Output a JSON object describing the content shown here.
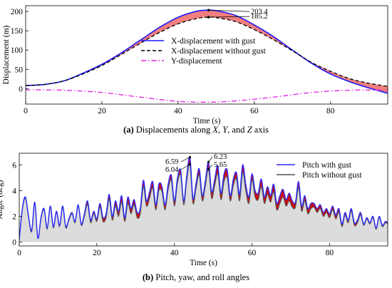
{
  "chart_data": [
    {
      "type": "line",
      "panel_label": "(a)",
      "caption_parts": [
        "Displacements along ",
        "X",
        ", ",
        "Y",
        ", and ",
        "Z",
        " axis"
      ],
      "xlabel": "Time (s)",
      "ylabel": "Displacement (m)",
      "xlim": [
        0,
        95
      ],
      "ylim": [
        -40,
        215
      ],
      "xticks": [
        0,
        20,
        40,
        60,
        80
      ],
      "yticks": [
        0,
        50,
        100,
        150,
        200
      ],
      "legend_position": "center-right",
      "grid": false,
      "series": [
        {
          "name": "X-displacement with gust",
          "color": "#1a1aff",
          "style": "solid",
          "x": [
            0,
            5,
            10,
            15,
            20,
            25,
            30,
            35,
            40,
            45,
            48,
            50,
            55,
            60,
            65,
            70,
            75,
            80,
            85,
            90,
            95
          ],
          "y": [
            8,
            11,
            20,
            40,
            63,
            92,
            125,
            158,
            185,
            201,
            203.4,
            202,
            190,
            165,
            135,
            100,
            66,
            38,
            18,
            2,
            -12
          ]
        },
        {
          "name": "X-displacement without gust",
          "color": "#000000",
          "style": "dashed",
          "x": [
            0,
            5,
            10,
            15,
            20,
            25,
            30,
            35,
            40,
            45,
            48,
            50,
            55,
            60,
            65,
            70,
            75,
            80,
            85,
            90,
            95
          ],
          "y": [
            8,
            11,
            20,
            38,
            60,
            88,
            117,
            145,
            168,
            182,
            185.2,
            184,
            174,
            153,
            127,
            98,
            68,
            45,
            26,
            14,
            6
          ]
        },
        {
          "name": "Y-displacement",
          "color": "#e020e0",
          "style": "dashdot",
          "x": [
            0,
            10,
            20,
            30,
            40,
            48,
            55,
            65,
            75,
            85,
            95
          ],
          "y": [
            -3,
            -4,
            -10,
            -22,
            -33,
            -35,
            -32,
            -22,
            -10,
            -4,
            -4
          ]
        }
      ],
      "annotations": [
        "203.4",
        "185.2"
      ]
    },
    {
      "type": "line",
      "panel_label": "(b)",
      "caption_parts": [
        "Pitch, yaw, and roll angles"
      ],
      "xlabel": "Time (s)",
      "ylabel": "Angle (deg)",
      "xlim": [
        0,
        95
      ],
      "ylim": [
        -0.3,
        6.9
      ],
      "xticks": [
        0,
        20,
        40,
        60,
        80
      ],
      "yticks": [
        0,
        2,
        4,
        6
      ],
      "legend_position": "top-right",
      "grid": false,
      "series": [
        {
          "name": "Pitch with gust",
          "color": "#2a2aff",
          "style": "solid",
          "x": [
            0,
            0.8,
            1.6,
            2.4,
            3.2,
            4.0,
            4.8,
            5.6,
            6.4,
            7.2,
            8.0,
            8.8,
            9.6,
            10.4,
            11.2,
            12.0,
            12.8,
            13.6,
            14.4,
            15.2,
            16.0,
            16.8,
            17.6,
            18.4,
            19.2,
            20.0,
            20.8,
            21.6,
            22.4,
            23.2,
            24.0,
            24.8,
            25.6,
            26.4,
            27.2,
            28.0,
            28.8,
            29.6,
            30.4,
            31.2,
            32.0,
            32.8,
            33.6,
            34.4,
            35.2,
            36.0,
            36.8,
            37.6,
            38.4,
            39.2,
            40.0,
            40.8,
            41.6,
            42.4,
            43.2,
            44.0,
            44.8,
            45.6,
            46.4,
            47.2,
            48.0,
            48.8,
            49.6,
            50.4,
            51.2,
            52.0,
            52.8,
            53.6,
            54.4,
            55.2,
            56.0,
            56.8,
            57.6,
            58.4,
            59.2,
            60.0,
            60.8,
            61.6,
            62.4,
            63.2,
            64.0,
            64.8,
            65.6,
            66.4,
            67.2,
            68.0,
            68.8,
            69.6,
            70.4,
            71.2,
            72.0,
            72.8,
            73.6,
            74.4,
            75.2,
            76.0,
            76.8,
            77.6,
            78.4,
            79.2,
            80.0,
            80.8,
            81.6,
            82.4,
            83.2,
            84.0,
            84.8,
            85.6,
            86.4,
            87.2,
            88.0,
            88.8,
            89.6,
            90.4,
            91.2,
            92.0,
            92.8,
            93.6,
            94.4,
            95.0
          ],
          "y": [
            0.2,
            2.6,
            3.5,
            2.0,
            0.9,
            3.1,
            0.3,
            1.9,
            2.6,
            1.1,
            2.8,
            1.2,
            2.4,
            1.3,
            2.8,
            1.2,
            1.8,
            2.3,
            1.6,
            2.9,
            1.4,
            2.2,
            3.2,
            1.7,
            2.4,
            1.8,
            3.0,
            1.9,
            2.2,
            3.7,
            2.0,
            3.2,
            2.4,
            3.6,
            1.9,
            3.5,
            2.6,
            3.3,
            2.3,
            2.6,
            4.8,
            3.2,
            3.9,
            4.7,
            2.9,
            4.5,
            4.3,
            2.9,
            4.5,
            5.2,
            3.2,
            5.0,
            5.6,
            3.2,
            5.2,
            6.59,
            3.4,
            4.6,
            5.7,
            3.6,
            4.8,
            6.23,
            3.9,
            4.9,
            5.9,
            3.8,
            5.3,
            5.6,
            3.6,
            4.9,
            5.4,
            3.7,
            6.0,
            4.5,
            3.5,
            5.3,
            4.0,
            3.8,
            4.9,
            3.5,
            4.3,
            3.6,
            4.5,
            3.0,
            3.6,
            4.1,
            3.3,
            3.8,
            3.2,
            3.1,
            4.7,
            2.8,
            3.6,
            2.6,
            3.0,
            3.0,
            2.6,
            2.9,
            2.3,
            2.6,
            2.2,
            2.8,
            2.1,
            2.6,
            1.4,
            2.3,
            1.7,
            2.6,
            1.5,
            1.7,
            2.3,
            1.4,
            1.9,
            1.5,
            2.0,
            1.1,
            2.0,
            1.3,
            1.6,
            1.5
          ],
          "fill": "#dcdcdc"
        },
        {
          "name": "Pitch without gust",
          "color": "#555555",
          "style": "solid",
          "x": [
            0,
            0.8,
            1.6,
            2.4,
            3.2,
            4.0,
            4.8,
            5.6,
            6.4,
            7.2,
            8.0,
            8.8,
            9.6,
            10.4,
            11.2,
            12.0,
            12.8,
            13.6,
            14.4,
            15.2,
            16.0,
            16.8,
            17.6,
            18.4,
            19.2,
            20.0,
            20.8,
            21.6,
            22.4,
            23.2,
            24.0,
            24.8,
            25.6,
            26.4,
            27.2,
            28.0,
            28.8,
            29.6,
            30.4,
            31.2,
            32.0,
            32.8,
            33.6,
            34.4,
            35.2,
            36.0,
            36.8,
            37.6,
            38.4,
            39.2,
            40.0,
            40.8,
            41.6,
            42.4,
            43.2,
            44.0,
            44.8,
            45.6,
            46.4,
            47.2,
            48.0,
            48.8,
            49.6,
            50.4,
            51.2,
            52.0,
            52.8,
            53.6,
            54.4,
            55.2,
            56.0,
            56.8,
            57.6,
            58.4,
            59.2,
            60.0,
            60.8,
            61.6,
            62.4,
            63.2,
            64.0,
            64.8,
            65.6,
            66.4,
            67.2,
            68.0,
            68.8,
            69.6,
            70.4,
            71.2,
            72.0,
            72.8,
            73.6,
            74.4,
            75.2,
            76.0,
            76.8,
            77.6,
            78.4,
            79.2,
            80.0,
            80.8,
            81.6,
            82.4,
            83.2,
            84.0,
            84.8,
            85.6,
            86.4,
            87.2,
            88.0,
            88.8,
            89.6,
            90.4,
            91.2,
            92.0,
            92.8,
            93.6,
            94.4,
            95.0
          ],
          "y": [
            0.2,
            2.5,
            3.4,
            1.9,
            0.8,
            3.0,
            0.3,
            1.8,
            2.5,
            1.0,
            2.7,
            1.1,
            2.3,
            1.2,
            2.7,
            1.1,
            1.7,
            2.2,
            1.5,
            2.8,
            1.3,
            2.0,
            2.9,
            1.5,
            2.2,
            1.6,
            2.7,
            1.6,
            1.9,
            3.3,
            1.7,
            2.8,
            2.0,
            3.1,
            1.6,
            3.0,
            2.2,
            2.9,
            1.9,
            2.2,
            4.3,
            2.8,
            3.4,
            4.2,
            2.5,
            4.0,
            3.9,
            2.5,
            4.1,
            4.8,
            2.8,
            4.6,
            5.2,
            2.9,
            4.8,
            6.04,
            3.0,
            4.2,
            5.2,
            3.2,
            4.4,
            5.65,
            3.4,
            4.4,
            5.3,
            3.3,
            4.7,
            5.0,
            3.2,
            4.4,
            4.9,
            3.2,
            5.4,
            4.0,
            3.0,
            4.8,
            3.5,
            3.3,
            4.3,
            3.0,
            3.7,
            3.1,
            3.9,
            2.5,
            3.0,
            3.5,
            2.8,
            3.2,
            2.7,
            2.7,
            4.2,
            2.4,
            3.2,
            2.2,
            2.6,
            2.7,
            2.3,
            2.6,
            2.0,
            2.3,
            1.9,
            2.5,
            1.8,
            2.3,
            1.2,
            2.1,
            1.5,
            2.4,
            1.3,
            1.5,
            2.1,
            1.3,
            1.8,
            1.4,
            1.9,
            1.0,
            1.9,
            1.2,
            1.5,
            1.4
          ]
        }
      ],
      "difference_fill": "#cc0000",
      "annotations": [
        {
          "text": "6.59",
          "x": 44.0,
          "y": 6.59
        },
        {
          "text": "6.04",
          "x": 44.0,
          "y": 6.04
        },
        {
          "text": "6.23",
          "x": 48.8,
          "y": 6.23
        },
        {
          "text": "5.65",
          "x": 48.8,
          "y": 5.65
        }
      ]
    }
  ]
}
